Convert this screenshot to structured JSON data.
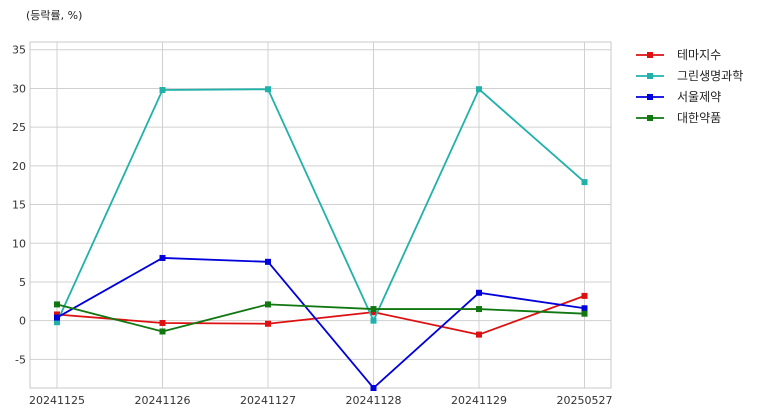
{
  "chart_data": {
    "type": "line",
    "ylabel": "(등락률, %)",
    "xlabel": "",
    "title": "",
    "categories": [
      "20241125",
      "20241126",
      "20241127",
      "20241128",
      "20241129",
      "20250527"
    ],
    "ylim": [
      -8.7,
      36
    ],
    "yticks": [
      -5,
      0,
      5,
      10,
      15,
      20,
      25,
      30,
      35
    ],
    "grid": true,
    "legend": "outside-top-right",
    "series": [
      {
        "name": "테마지수",
        "color": "#dd1111",
        "values": [
          0.8,
          -0.3,
          -0.4,
          1.1,
          -1.8,
          3.2
        ]
      },
      {
        "name": "그린생명과학",
        "color": "#20b2aa",
        "values": [
          -0.2,
          29.8,
          29.9,
          0.0,
          29.9,
          17.9
        ]
      },
      {
        "name": "서울제약",
        "color": "#0000dd",
        "values": [
          0.4,
          8.1,
          7.6,
          -8.7,
          3.6,
          1.6
        ]
      },
      {
        "name": "대한약품",
        "color": "#117711",
        "values": [
          2.1,
          -1.4,
          2.1,
          1.5,
          1.5,
          0.9
        ]
      }
    ]
  }
}
